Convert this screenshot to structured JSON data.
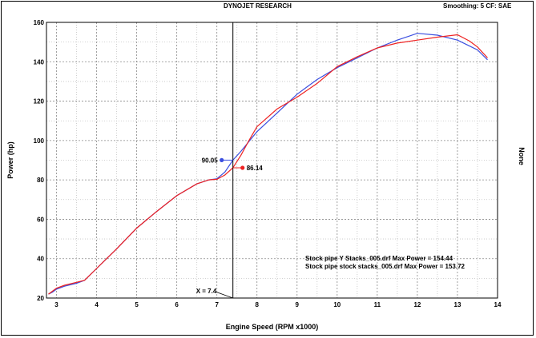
{
  "header": {
    "center_title": "DYNOJET RESEARCH",
    "right_info": "Smoothing: 5  CF: SAE"
  },
  "chart_data": {
    "type": "line",
    "title": "DYNOJET RESEARCH",
    "xlabel": "Engine Speed (RPM x1000)",
    "ylabel": "Power (hp)",
    "y2label": "None",
    "xlim": [
      2.75,
      14
    ],
    "ylim": [
      20,
      160
    ],
    "x_ticks": [
      3,
      4,
      5,
      6,
      7,
      8,
      9,
      10,
      11,
      12,
      13,
      14
    ],
    "y_ticks": [
      20,
      40,
      60,
      80,
      100,
      120,
      140,
      160
    ],
    "grid": true,
    "cursor": {
      "x": 7.4,
      "label": "X = 7.4"
    },
    "markers": [
      {
        "series": 0,
        "y": 90.05,
        "label": "90.05"
      },
      {
        "series": 1,
        "y": 86.14,
        "label": "86.14"
      }
    ],
    "legend": [
      "Stock pipe Y Stacks_005.drf Max Power = 154.44",
      "Stock pipe stock stacks_005.drf Max Power = 153.72"
    ],
    "series": [
      {
        "name": "Stock pipe Y Stacks_005.drf",
        "color": "#3b4fe0",
        "x": [
          2.8,
          2.9,
          3.0,
          3.2,
          3.5,
          3.7,
          4.0,
          4.5,
          5.0,
          5.5,
          6.0,
          6.5,
          6.8,
          7.0,
          7.2,
          7.4,
          7.6,
          7.8,
          8.0,
          8.5,
          9.0,
          9.5,
          10.0,
          10.5,
          11.0,
          11.5,
          12.0,
          12.5,
          13.0,
          13.3,
          13.5,
          13.75
        ],
        "values": [
          22,
          23,
          24.5,
          26,
          27.5,
          29,
          35,
          45,
          55.5,
          64,
          72,
          78,
          80,
          80.6,
          84,
          90.05,
          94.5,
          99.5,
          104.5,
          114,
          123.5,
          131,
          137,
          142,
          147,
          151,
          154.44,
          153.5,
          151,
          148,
          146,
          141
        ]
      },
      {
        "name": "Stock pipe stock stacks_005.drf",
        "color": "#ee2222",
        "x": [
          2.8,
          2.9,
          3.0,
          3.2,
          3.5,
          3.7,
          4.0,
          4.5,
          5.0,
          5.5,
          6.0,
          6.5,
          6.8,
          7.0,
          7.2,
          7.4,
          7.6,
          7.8,
          8.0,
          8.5,
          9.0,
          9.5,
          10.0,
          10.5,
          11.0,
          11.5,
          12.0,
          12.5,
          13.0,
          13.3,
          13.5,
          13.75
        ],
        "values": [
          22,
          23.5,
          25,
          26.5,
          28,
          29,
          35,
          45,
          55.5,
          64,
          72,
          78,
          80,
          80.3,
          82.5,
          86.14,
          92.5,
          100,
          107,
          116,
          122,
          129,
          137.5,
          142.5,
          147,
          149.5,
          151,
          152.5,
          153.72,
          150.5,
          147.5,
          142
        ]
      }
    ]
  }
}
